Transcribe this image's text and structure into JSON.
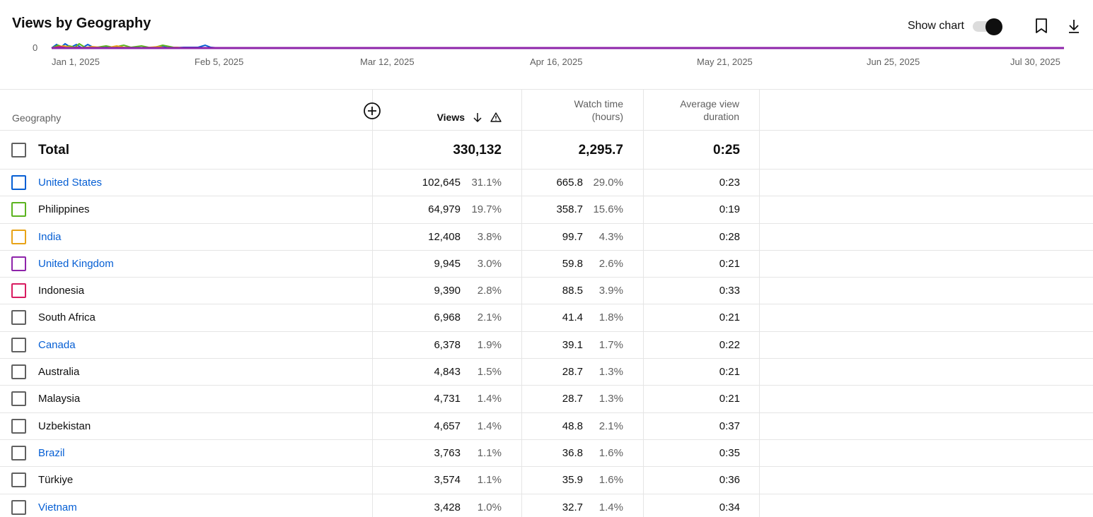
{
  "header": {
    "title": "Views by Geography",
    "show_chart_label": "Show chart",
    "show_chart_on": true,
    "icons": [
      "bookmark-icon",
      "download-icon"
    ]
  },
  "chart": {
    "y_zero_label": "0",
    "x_ticks": [
      "Jan 1, 2025",
      "Feb 5, 2025",
      "Mar 12, 2025",
      "Apr 16, 2025",
      "May 21, 2025",
      "Jun 25, 2025",
      "Jul 30, 2025"
    ]
  },
  "table": {
    "col_geography": "Geography",
    "col_views": "Views",
    "col_watch_line1": "Watch time",
    "col_watch_line2": "(hours)",
    "col_avd_line1": "Average view",
    "col_avd_line2": "duration",
    "total": {
      "label": "Total",
      "views": "330,132",
      "watch": "2,295.7",
      "avd": "0:25"
    },
    "rows": [
      {
        "name": "United States",
        "link": true,
        "color": "#065fd4",
        "views": "102,645",
        "views_pct": "31.1%",
        "watch": "665.8",
        "watch_pct": "29.0%",
        "avd": "0:23"
      },
      {
        "name": "Philippines",
        "link": false,
        "color": "#5bb31f",
        "views": "64,979",
        "views_pct": "19.7%",
        "watch": "358.7",
        "watch_pct": "15.6%",
        "avd": "0:19"
      },
      {
        "name": "India",
        "link": true,
        "color": "#e8a317",
        "views": "12,408",
        "views_pct": "3.8%",
        "watch": "99.7",
        "watch_pct": "4.3%",
        "avd": "0:28"
      },
      {
        "name": "United Kingdom",
        "link": true,
        "color": "#8e24aa",
        "views": "9,945",
        "views_pct": "3.0%",
        "watch": "59.8",
        "watch_pct": "2.6%",
        "avd": "0:21"
      },
      {
        "name": "Indonesia",
        "link": false,
        "color": "#d81b60",
        "views": "9,390",
        "views_pct": "2.8%",
        "watch": "88.5",
        "watch_pct": "3.9%",
        "avd": "0:33"
      },
      {
        "name": "South Africa",
        "link": false,
        "color": "#606060",
        "views": "6,968",
        "views_pct": "2.1%",
        "watch": "41.4",
        "watch_pct": "1.8%",
        "avd": "0:21"
      },
      {
        "name": "Canada",
        "link": true,
        "color": "#606060",
        "views": "6,378",
        "views_pct": "1.9%",
        "watch": "39.1",
        "watch_pct": "1.7%",
        "avd": "0:22"
      },
      {
        "name": "Australia",
        "link": false,
        "color": "#606060",
        "views": "4,843",
        "views_pct": "1.5%",
        "watch": "28.7",
        "watch_pct": "1.3%",
        "avd": "0:21"
      },
      {
        "name": "Malaysia",
        "link": false,
        "color": "#606060",
        "views": "4,731",
        "views_pct": "1.4%",
        "watch": "28.7",
        "watch_pct": "1.3%",
        "avd": "0:21"
      },
      {
        "name": "Uzbekistan",
        "link": false,
        "color": "#606060",
        "views": "4,657",
        "views_pct": "1.4%",
        "watch": "48.8",
        "watch_pct": "2.1%",
        "avd": "0:37"
      },
      {
        "name": "Brazil",
        "link": true,
        "color": "#606060",
        "views": "3,763",
        "views_pct": "1.1%",
        "watch": "36.8",
        "watch_pct": "1.6%",
        "avd": "0:35"
      },
      {
        "name": "Türkiye",
        "link": false,
        "color": "#606060",
        "views": "3,574",
        "views_pct": "1.1%",
        "watch": "35.9",
        "watch_pct": "1.6%",
        "avd": "0:36"
      },
      {
        "name": "Vietnam",
        "link": true,
        "color": "#606060",
        "views": "3,428",
        "views_pct": "1.0%",
        "watch": "32.7",
        "watch_pct": "1.4%",
        "avd": "0:34"
      }
    ]
  }
}
